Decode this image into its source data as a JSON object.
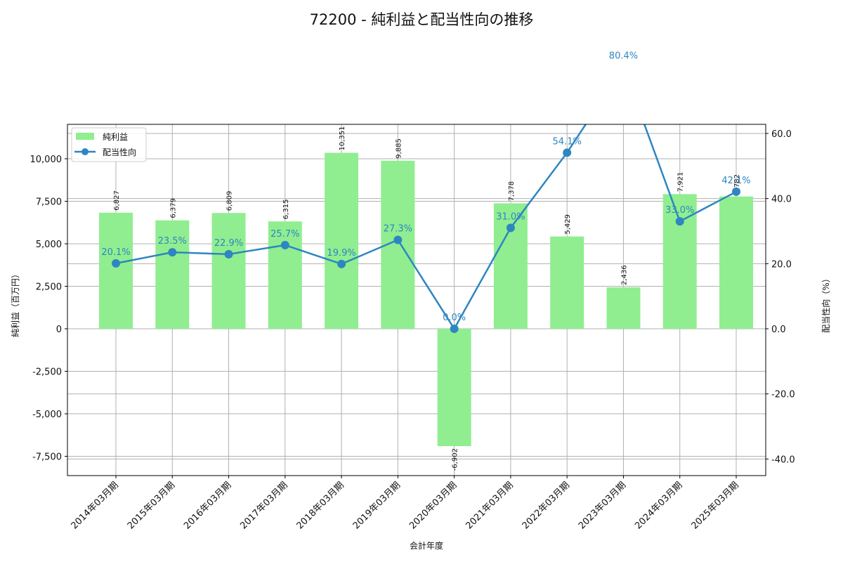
{
  "chart_data": {
    "type": "bar+line",
    "title": "72200 - 純利益と配当性向の推移",
    "xlabel": "会計年度",
    "ylabel_left": "純利益（百万円）",
    "ylabel_right": "配当性向（%）",
    "categories": [
      "2014年03月期",
      "2015年03月期",
      "2016年03月期",
      "2017年03月期",
      "2018年03月期",
      "2019年03月期",
      "2020年03月期",
      "2021年03月期",
      "2022年03月期",
      "2023年03月期",
      "2024年03月期",
      "2025年03月期"
    ],
    "series": [
      {
        "name": "純利益",
        "type": "bar",
        "axis": "left",
        "color": "#90ee90",
        "values": [
          6827,
          6379,
          6809,
          6315,
          10351,
          9885,
          -6902,
          7378,
          5429,
          2436,
          7921,
          7782
        ],
        "labels": [
          "6,827",
          "6,379",
          "6,809",
          "6,315",
          "10,351",
          "9,885",
          "-6,902",
          "7,378",
          "5,429",
          "2,436",
          "7,921",
          "7,782"
        ]
      },
      {
        "name": "配当性向",
        "type": "line",
        "axis": "right",
        "color": "#2e86c1",
        "values": [
          20.1,
          23.5,
          22.9,
          25.7,
          19.9,
          27.3,
          0.0,
          31.0,
          54.1,
          80.4,
          33.0,
          42.1
        ],
        "labels": [
          "20.1%",
          "23.5%",
          "22.9%",
          "25.7%",
          "19.9%",
          "27.3%",
          "0.0%",
          "31.0%",
          "54.1%",
          "80.4%",
          "33.0%",
          "42.1%"
        ]
      }
    ],
    "ylim_left": [
      -8636,
      12025
    ],
    "ylim_right": [
      -45.1,
      62.8
    ],
    "yticks_left": [
      {
        "v": -7500,
        "label": "-7,500"
      },
      {
        "v": -5000,
        "label": "-5,000"
      },
      {
        "v": -2500,
        "label": "-2,500"
      },
      {
        "v": 0,
        "label": "0"
      },
      {
        "v": 2500,
        "label": "2,500"
      },
      {
        "v": 5000,
        "label": "5,000"
      },
      {
        "v": 7500,
        "label": "7,500"
      },
      {
        "v": 10000,
        "label": "10,000"
      }
    ],
    "yticks_right": [
      {
        "v": -40,
        "label": "-40.0"
      },
      {
        "v": -20,
        "label": "-20.0"
      },
      {
        "v": 0,
        "label": "0.0"
      },
      {
        "v": 20,
        "label": "20.0"
      },
      {
        "v": 40,
        "label": "40.0"
      },
      {
        "v": 60,
        "label": "60.0"
      }
    ],
    "grid": true,
    "legend_position": "upper left",
    "legend": [
      "純利益",
      "配当性向"
    ]
  }
}
